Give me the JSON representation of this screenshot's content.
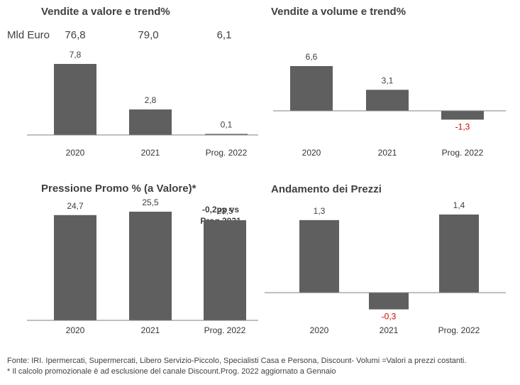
{
  "mld_euro": {
    "label": "Mld Euro",
    "values": [
      "76,8",
      "79,0",
      "6,1"
    ]
  },
  "annotation": {
    "line1": "-0,2pp vs",
    "line2": "Prog 2021"
  },
  "footer": {
    "line1": "Fonte: IRI. Ipermercati, Supermercati, Libero Servizio-Piccolo, Specialisti Casa e Persona, Discount-  Volumi =Valori a prezzi costanti.",
    "line2": "* Il calcolo promozionale è ad esclusione del canale Discount.Prog. 2022 aggiornato a Gennaio"
  },
  "colors": {
    "bar": "#5f5f5f",
    "negative_label": "#cc0000",
    "axis": "#808080"
  },
  "chart_data": [
    {
      "type": "bar",
      "title": "Vendite a valore e trend%",
      "categories": [
        "2020",
        "2021",
        "Prog. 2022"
      ],
      "values": [
        7.8,
        2.8,
        0.1
      ],
      "labels": [
        "7,8",
        "2,8",
        "0,1"
      ],
      "ylim": [
        0,
        7.8
      ]
    },
    {
      "type": "bar",
      "title": "Vendite a volume e trend%",
      "categories": [
        "2020",
        "2021",
        "Prog. 2022"
      ],
      "values": [
        6.6,
        3.1,
        -1.3
      ],
      "labels": [
        "6,6",
        "3,1",
        "-1,3"
      ],
      "ylim": [
        -1.3,
        6.6
      ]
    },
    {
      "type": "bar",
      "title": "Pressione Promo % (a Valore)*",
      "categories": [
        "2020",
        "2021",
        "Prog. 2022"
      ],
      "values": [
        24.7,
        25.5,
        23.5
      ],
      "labels": [
        "24,7",
        "25,5",
        "23,5"
      ],
      "ylim": [
        0,
        25.5
      ]
    },
    {
      "type": "bar",
      "title": "Andamento dei Prezzi",
      "categories": [
        "2020",
        "2021",
        "Prog. 2022"
      ],
      "values": [
        1.3,
        -0.3,
        1.4
      ],
      "labels": [
        "1,3",
        "-0,3",
        "1,4"
      ],
      "ylim": [
        -0.3,
        1.4
      ]
    }
  ]
}
